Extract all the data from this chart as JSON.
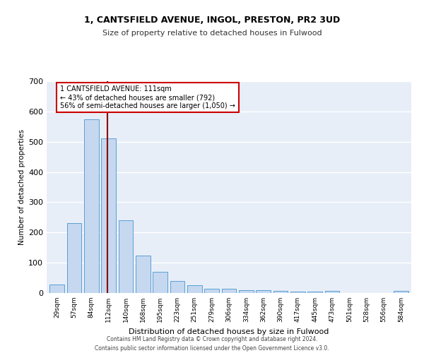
{
  "title1": "1, CANTSFIELD AVENUE, INGOL, PRESTON, PR2 3UD",
  "title2": "Size of property relative to detached houses in Fulwood",
  "xlabel": "Distribution of detached houses by size in Fulwood",
  "ylabel": "Number of detached properties",
  "categories": [
    "29sqm",
    "57sqm",
    "84sqm",
    "112sqm",
    "140sqm",
    "168sqm",
    "195sqm",
    "223sqm",
    "251sqm",
    "279sqm",
    "306sqm",
    "334sqm",
    "362sqm",
    "390sqm",
    "417sqm",
    "445sqm",
    "473sqm",
    "501sqm",
    "528sqm",
    "556sqm",
    "584sqm"
  ],
  "values": [
    27,
    230,
    575,
    510,
    240,
    123,
    70,
    40,
    25,
    15,
    13,
    10,
    10,
    6,
    5,
    5,
    8,
    0,
    0,
    0,
    6
  ],
  "bar_color": "#c5d8f0",
  "bar_edge_color": "#5a9fd4",
  "vline_color": "#8b0000",
  "annotation_text": "1 CANTSFIELD AVENUE: 111sqm\n← 43% of detached houses are smaller (792)\n56% of semi-detached houses are larger (1,050) →",
  "annotation_box_color": "#ffffff",
  "annotation_box_edge": "#cc0000",
  "footer1": "Contains HM Land Registry data © Crown copyright and database right 2024.",
  "footer2": "Contains public sector information licensed under the Open Government Licence v3.0.",
  "ylim": [
    0,
    700
  ],
  "yticks": [
    0,
    100,
    200,
    300,
    400,
    500,
    600,
    700
  ],
  "background_color": "#e8eef8",
  "grid_color": "#ffffff"
}
